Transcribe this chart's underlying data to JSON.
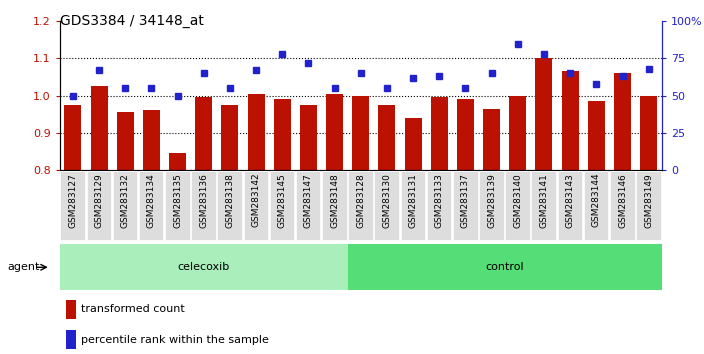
{
  "title": "GDS3384 / 34148_at",
  "samples": [
    "GSM283127",
    "GSM283129",
    "GSM283132",
    "GSM283134",
    "GSM283135",
    "GSM283136",
    "GSM283138",
    "GSM283142",
    "GSM283145",
    "GSM283147",
    "GSM283148",
    "GSM283128",
    "GSM283130",
    "GSM283131",
    "GSM283133",
    "GSM283137",
    "GSM283139",
    "GSM283140",
    "GSM283141",
    "GSM283143",
    "GSM283144",
    "GSM283146",
    "GSM283149"
  ],
  "bar_values": [
    0.975,
    1.025,
    0.955,
    0.96,
    0.845,
    0.995,
    0.975,
    1.005,
    0.99,
    0.975,
    1.005,
    1.0,
    0.975,
    0.94,
    0.995,
    0.99,
    0.965,
    1.0,
    1.1,
    1.065,
    0.985,
    1.06,
    1.0
  ],
  "dot_values": [
    50,
    67,
    55,
    55,
    50,
    65,
    55,
    67,
    78,
    72,
    55,
    65,
    55,
    62,
    63,
    55,
    65,
    85,
    78,
    65,
    58,
    63,
    68
  ],
  "celecoxib_count": 11,
  "control_count": 12,
  "ylim_left": [
    0.8,
    1.2
  ],
  "ylim_right": [
    0,
    100
  ],
  "yticks_left": [
    0.8,
    0.9,
    1.0,
    1.1,
    1.2
  ],
  "yticks_right": [
    0,
    25,
    50,
    75,
    100
  ],
  "bar_color": "#bb1100",
  "dot_color": "#2222cc",
  "celecoxib_color": "#aaeebb",
  "control_color": "#55dd77",
  "background_color": "#ffffff",
  "agent_label": "agent",
  "celecoxib_label": "celecoxib",
  "control_label": "control",
  "legend_bar_label": "transformed count",
  "legend_dot_label": "percentile rank within the sample",
  "xtick_bg": "#dddddd"
}
